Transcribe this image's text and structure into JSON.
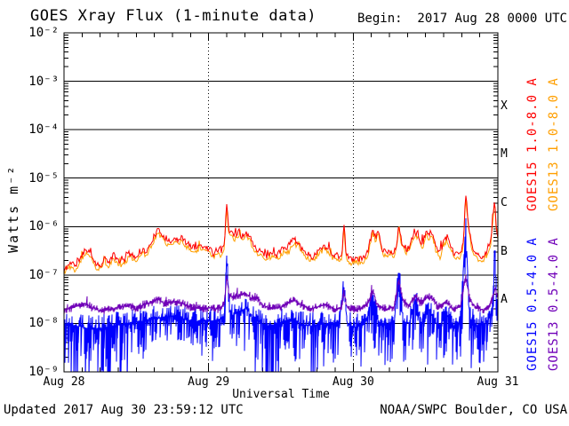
{
  "header": {
    "title": "GOES Xray Flux (1-minute data)",
    "begin_label": "Begin:  2017 Aug 28 0000 UTC"
  },
  "footer": {
    "updated": "Updated 2017 Aug 30 23:59:12 UTC",
    "source": "NOAA/SWPC Boulder, CO USA"
  },
  "chart_data": {
    "type": "line",
    "title": "GOES Xray Flux (1-minute data)",
    "x_axis_title": "Universal Time",
    "y_axis_title": "Watts m⁻²",
    "x_start_label": "Begin:  2017 Aug 28 0000 UTC",
    "x_range_hours": [
      0,
      72
    ],
    "y_scale": "log",
    "y_log_range": [
      -9,
      -2
    ],
    "grid": {
      "h_lines_exponents": [
        -3,
        -4,
        -5,
        -6,
        -7,
        -8
      ],
      "v_dashed_hours": [
        24,
        48
      ],
      "minor_x_tick_hours": 3
    },
    "y_ticks": [
      {
        "exp": -2,
        "label": "10⁻²"
      },
      {
        "exp": -3,
        "label": "10⁻³"
      },
      {
        "exp": -4,
        "label": "10⁻⁴"
      },
      {
        "exp": -5,
        "label": "10⁻⁵"
      },
      {
        "exp": -6,
        "label": "10⁻⁶"
      },
      {
        "exp": -7,
        "label": "10⁻⁷"
      },
      {
        "exp": -8,
        "label": "10⁻⁸"
      },
      {
        "exp": -9,
        "label": "10⁻⁹"
      }
    ],
    "x_ticks": [
      {
        "t": 0,
        "label": "Aug 28"
      },
      {
        "t": 24,
        "label": "Aug 29"
      },
      {
        "t": 48,
        "label": "Aug 30"
      },
      {
        "t": 72,
        "label": "Aug 31"
      }
    ],
    "class_bands": [
      {
        "label": "X",
        "log_center": -3.5
      },
      {
        "label": "M",
        "log_center": -4.5
      },
      {
        "label": "C",
        "log_center": -5.5
      },
      {
        "label": "B",
        "log_center": -6.5
      },
      {
        "label": "A",
        "log_center": -7.5
      }
    ],
    "legend": [
      {
        "label": "GOES15 1.0-8.0 A",
        "color": "#fe0000"
      },
      {
        "label": "GOES13 1.0-8.0 A",
        "color": "#ff9f00"
      },
      {
        "label": "GOES15 0.5-4.0 A",
        "color": "#0000fe"
      },
      {
        "label": "GOES13 0.5-4.0 A",
        "color": "#7000b8"
      }
    ],
    "series": [
      {
        "name": "GOES13 1.0-8.0 A",
        "color": "#ff9f00",
        "style": "line",
        "derived_from": "GOES15 1.0-8.0 A",
        "offset_log10": -0.08,
        "noise": 0.05,
        "seed": 77
      },
      {
        "name": "GOES15 0.5-4.0 A",
        "color": "#0000fe",
        "style": "noisy-band",
        "up_noise": 0.28,
        "seed": 913,
        "keypoints": [
          [
            0,
            -8.0
          ],
          [
            2,
            -8.05
          ],
          [
            4,
            -8.1
          ],
          [
            6,
            -8.1
          ],
          [
            8,
            -8.05
          ],
          [
            10,
            -8.02
          ],
          [
            12,
            -7.98
          ],
          [
            14,
            -7.92
          ],
          [
            16,
            -7.88
          ],
          [
            18,
            -7.85
          ],
          [
            20,
            -7.92
          ],
          [
            22,
            -7.95
          ],
          [
            24,
            -7.95
          ],
          [
            25.5,
            -7.92
          ],
          [
            26.6,
            -7.85
          ],
          [
            27.0,
            -6.62
          ],
          [
            27.5,
            -7.85
          ],
          [
            28.5,
            -7.8
          ],
          [
            29.5,
            -7.72
          ],
          [
            30.3,
            -7.68
          ],
          [
            31,
            -7.85
          ],
          [
            32,
            -7.95
          ],
          [
            33.5,
            -8.05
          ],
          [
            35,
            -8.02
          ],
          [
            36.5,
            -7.95
          ],
          [
            38,
            -7.88
          ],
          [
            39.5,
            -8.02
          ],
          [
            41,
            -8.05
          ],
          [
            42.5,
            -8.0
          ],
          [
            44,
            -8.02
          ],
          [
            45.5,
            -8.05
          ],
          [
            46.45,
            -7.3
          ],
          [
            47,
            -8.02
          ],
          [
            48.5,
            -8.08
          ],
          [
            50.3,
            -7.9
          ],
          [
            51.25,
            -7.35
          ],
          [
            52,
            -7.95
          ],
          [
            53.5,
            -8.02
          ],
          [
            54.8,
            -7.95
          ],
          [
            55.55,
            -6.85
          ],
          [
            56.3,
            -7.95
          ],
          [
            57.3,
            -8.0
          ],
          [
            58.3,
            -7.5
          ],
          [
            59.3,
            -7.98
          ],
          [
            60.3,
            -7.6
          ],
          [
            61.3,
            -7.95
          ],
          [
            62.3,
            -8.05
          ],
          [
            63.4,
            -7.8
          ],
          [
            64.5,
            -8.05
          ],
          [
            65.8,
            -8.0
          ],
          [
            66.65,
            -5.95
          ],
          [
            67.3,
            -7.9
          ],
          [
            68.5,
            -8.05
          ],
          [
            69.8,
            -8.0
          ],
          [
            70.8,
            -7.85
          ],
          [
            71.2,
            -7.5
          ],
          [
            71.5,
            -6.25
          ],
          [
            71.8,
            -7.6
          ],
          [
            72,
            -7.8
          ]
        ],
        "dip_depth_keypoints": [
          [
            0,
            1.2
          ],
          [
            3,
            1.5
          ],
          [
            6,
            1.6
          ],
          [
            9,
            1.5
          ],
          [
            11,
            1.2
          ],
          [
            13,
            0.7
          ],
          [
            15,
            0.55
          ],
          [
            17,
            0.5
          ],
          [
            19,
            0.5
          ],
          [
            21,
            0.5
          ],
          [
            23,
            0.55
          ],
          [
            25,
            0.6
          ],
          [
            27,
            0.7
          ],
          [
            29,
            0.9
          ],
          [
            31,
            1.2
          ],
          [
            33,
            1.5
          ],
          [
            34.5,
            1.6
          ],
          [
            36,
            1.2
          ],
          [
            38,
            1.0
          ],
          [
            40,
            1.2
          ],
          [
            41.5,
            1.4
          ],
          [
            43,
            0.9
          ],
          [
            45,
            0.7
          ],
          [
            47,
            0.6
          ],
          [
            49,
            0.9
          ],
          [
            51,
            1.0
          ],
          [
            53,
            1.0
          ],
          [
            55,
            0.8
          ],
          [
            57,
            0.9
          ],
          [
            59,
            0.8
          ],
          [
            61,
            0.9
          ],
          [
            63,
            1.0
          ],
          [
            65,
            0.9
          ],
          [
            67,
            0.8
          ],
          [
            69,
            0.9
          ],
          [
            71,
            0.8
          ],
          [
            72,
            0.8
          ]
        ]
      },
      {
        "name": "GOES13 0.5-4.0 A",
        "color": "#7000b8",
        "style": "band",
        "noise": 0.09,
        "seed": 541,
        "keypoints": [
          [
            0,
            -7.72
          ],
          [
            1.5,
            -7.68
          ],
          [
            3.4,
            -7.58
          ],
          [
            4.5,
            -7.66
          ],
          [
            6,
            -7.74
          ],
          [
            8,
            -7.7
          ],
          [
            10.8,
            -7.62
          ],
          [
            12,
            -7.7
          ],
          [
            13,
            -7.62
          ],
          [
            14.7,
            -7.56
          ],
          [
            15.6,
            -7.5
          ],
          [
            16.5,
            -7.58
          ],
          [
            18,
            -7.56
          ],
          [
            19.5,
            -7.58
          ],
          [
            21,
            -7.66
          ],
          [
            22.5,
            -7.7
          ],
          [
            24,
            -7.68
          ],
          [
            25.5,
            -7.7
          ],
          [
            26.6,
            -7.6
          ],
          [
            27.0,
            -7.05
          ],
          [
            27.4,
            -7.42
          ],
          [
            28.2,
            -7.48
          ],
          [
            29,
            -7.42
          ],
          [
            30.3,
            -7.38
          ],
          [
            31,
            -7.5
          ],
          [
            31.8,
            -7.45
          ],
          [
            33,
            -7.62
          ],
          [
            34.5,
            -7.7
          ],
          [
            36,
            -7.66
          ],
          [
            37.5,
            -7.56
          ],
          [
            38.2,
            -7.52
          ],
          [
            39.5,
            -7.62
          ],
          [
            41,
            -7.7
          ],
          [
            42.5,
            -7.64
          ],
          [
            43.5,
            -7.62
          ],
          [
            45,
            -7.7
          ],
          [
            46.1,
            -7.66
          ],
          [
            46.45,
            -7.35
          ],
          [
            47,
            -7.68
          ],
          [
            48.5,
            -7.72
          ],
          [
            50.3,
            -7.62
          ],
          [
            51.25,
            -7.32
          ],
          [
            52,
            -7.62
          ],
          [
            53.5,
            -7.7
          ],
          [
            54.8,
            -7.66
          ],
          [
            55.55,
            -7.12
          ],
          [
            56.3,
            -7.55
          ],
          [
            57.2,
            -7.62
          ],
          [
            58.3,
            -7.42
          ],
          [
            59.3,
            -7.62
          ],
          [
            60.3,
            -7.45
          ],
          [
            61.2,
            -7.5
          ],
          [
            62.2,
            -7.68
          ],
          [
            63.4,
            -7.55
          ],
          [
            64.5,
            -7.7
          ],
          [
            65.8,
            -7.66
          ],
          [
            66.65,
            -7.02
          ],
          [
            67.3,
            -7.5
          ],
          [
            68.3,
            -7.66
          ],
          [
            69.5,
            -7.72
          ],
          [
            70.5,
            -7.68
          ],
          [
            71.2,
            -7.45
          ],
          [
            71.55,
            -7.28
          ],
          [
            72,
            -7.52
          ]
        ]
      },
      {
        "name": "GOES15 1.0-8.0 A",
        "color": "#fe0000",
        "style": "line",
        "noise": 0.06,
        "seed": 11,
        "keypoints": [
          [
            0,
            -6.92
          ],
          [
            0.8,
            -6.78
          ],
          [
            1.4,
            -6.72
          ],
          [
            1.9,
            -6.84
          ],
          [
            2.6,
            -6.66
          ],
          [
            3.4,
            -6.5
          ],
          [
            4.0,
            -6.47
          ],
          [
            4.6,
            -6.6
          ],
          [
            5.3,
            -6.76
          ],
          [
            6.0,
            -6.82
          ],
          [
            6.8,
            -6.62
          ],
          [
            7.2,
            -6.76
          ],
          [
            8.3,
            -6.58
          ],
          [
            8.8,
            -6.68
          ],
          [
            9.6,
            -6.74
          ],
          [
            10.8,
            -6.55
          ],
          [
            11.8,
            -6.64
          ],
          [
            13.0,
            -6.48
          ],
          [
            13.8,
            -6.52
          ],
          [
            14.7,
            -6.25
          ],
          [
            15.6,
            -6.08
          ],
          [
            16.4,
            -6.17
          ],
          [
            17.1,
            -6.28
          ],
          [
            17.8,
            -6.33
          ],
          [
            18.4,
            -6.2
          ],
          [
            19.0,
            -6.3
          ],
          [
            19.6,
            -6.22
          ],
          [
            20.2,
            -6.33
          ],
          [
            20.8,
            -6.38
          ],
          [
            21.8,
            -6.44
          ],
          [
            22.7,
            -6.38
          ],
          [
            23.6,
            -6.44
          ],
          [
            24.3,
            -6.48
          ],
          [
            24.9,
            -6.58
          ],
          [
            25.4,
            -6.46
          ],
          [
            25.9,
            -6.55
          ],
          [
            26.6,
            -6.35
          ],
          [
            27.0,
            -5.52
          ],
          [
            27.35,
            -6.12
          ],
          [
            27.8,
            -6.1
          ],
          [
            28.2,
            -6.2
          ],
          [
            28.6,
            -6.16
          ],
          [
            29.0,
            -6.09
          ],
          [
            29.5,
            -6.2
          ],
          [
            30.2,
            -6.13
          ],
          [
            30.7,
            -6.18
          ],
          [
            31.4,
            -6.36
          ],
          [
            32.2,
            -6.48
          ],
          [
            33.0,
            -6.57
          ],
          [
            33.9,
            -6.62
          ],
          [
            34.6,
            -6.54
          ],
          [
            35.2,
            -6.6
          ],
          [
            35.9,
            -6.52
          ],
          [
            36.6,
            -6.42
          ],
          [
            37.3,
            -6.45
          ],
          [
            38.0,
            -6.27
          ],
          [
            38.8,
            -6.32
          ],
          [
            39.5,
            -6.45
          ],
          [
            40.3,
            -6.56
          ],
          [
            41.3,
            -6.63
          ],
          [
            42.2,
            -6.5
          ],
          [
            43.2,
            -6.38
          ],
          [
            44.0,
            -6.5
          ],
          [
            44.7,
            -6.58
          ],
          [
            45.5,
            -6.63
          ],
          [
            46.1,
            -6.6
          ],
          [
            46.45,
            -5.9
          ],
          [
            46.8,
            -6.55
          ],
          [
            47.5,
            -6.68
          ],
          [
            48.4,
            -6.65
          ],
          [
            49.5,
            -6.68
          ],
          [
            50.3,
            -6.55
          ],
          [
            50.9,
            -6.25
          ],
          [
            51.2,
            -6.05
          ],
          [
            51.7,
            -6.25
          ],
          [
            52.1,
            -6.08
          ],
          [
            52.8,
            -6.45
          ],
          [
            53.4,
            -6.55
          ],
          [
            54.0,
            -6.48
          ],
          [
            54.7,
            -6.58
          ],
          [
            55.3,
            -6.3
          ],
          [
            55.55,
            -5.9
          ],
          [
            56.0,
            -6.3
          ],
          [
            56.9,
            -6.48
          ],
          [
            57.4,
            -6.42
          ],
          [
            58.0,
            -6.15
          ],
          [
            58.7,
            -6.12
          ],
          [
            59.4,
            -6.4
          ],
          [
            60.1,
            -6.08
          ],
          [
            60.6,
            -6.2
          ],
          [
            61.0,
            -6.07
          ],
          [
            61.6,
            -6.38
          ],
          [
            62.4,
            -6.55
          ],
          [
            63.1,
            -6.3
          ],
          [
            63.6,
            -6.2
          ],
          [
            64.2,
            -6.45
          ],
          [
            64.9,
            -6.58
          ],
          [
            65.8,
            -6.55
          ],
          [
            66.3,
            -6.3
          ],
          [
            66.65,
            -5.27
          ],
          [
            67.1,
            -5.95
          ],
          [
            67.6,
            -6.35
          ],
          [
            68.1,
            -6.52
          ],
          [
            68.8,
            -6.6
          ],
          [
            69.5,
            -6.62
          ],
          [
            70.2,
            -6.55
          ],
          [
            70.8,
            -6.28
          ],
          [
            71.15,
            -5.85
          ],
          [
            71.45,
            -5.44
          ],
          [
            71.75,
            -6.05
          ],
          [
            72,
            -6.18
          ]
        ]
      }
    ]
  }
}
